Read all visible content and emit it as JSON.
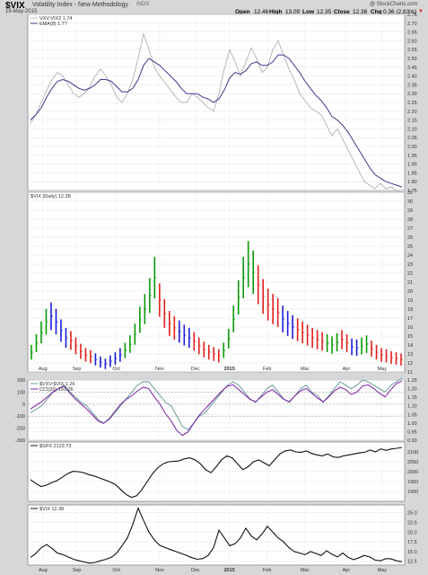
{
  "header": {
    "symbol": "$VIX",
    "name": "Volatility Index - New Methodology",
    "exchange": "INDX",
    "date": "15-May-2015",
    "copyright": "@ StockCharts.com",
    "open_label": "Open",
    "open_value": "12.46",
    "high_label": "High",
    "high_value": "13.09",
    "low_label": "Low",
    "low_value": "12.35",
    "close_label": "Close",
    "close_value": "12.38",
    "chg_label": "Chg",
    "chg_value": "0.36 (2.83%)",
    "chg_arrow": "▼"
  },
  "colors": {
    "up": "#0a9a0a",
    "down": "#e0201c",
    "blue": "#1c1cd8",
    "black": "#111111",
    "purple": "#7a1fa8",
    "gray": "#b8b8b8",
    "navy": "#3a3a8c",
    "teal": "#6a9a9a"
  },
  "chart_data": [
    {
      "type": "line",
      "panel": "ratio",
      "title": "$VXV:$VIX",
      "legend": [
        "VXV:VIX2 1.74",
        "EMA(8) 1.77"
      ],
      "series": [
        {
          "name": "VXV:VIX2 1.74",
          "values": [
            2.13,
            2.18,
            2.25,
            2.32,
            2.38,
            2.42,
            2.4,
            2.35,
            2.3,
            2.28,
            2.3,
            2.34,
            2.4,
            2.44,
            2.4,
            2.35,
            2.28,
            2.25,
            2.3,
            2.38,
            2.5,
            2.64,
            2.55,
            2.45,
            2.4,
            2.36,
            2.32,
            2.28,
            2.25,
            2.25,
            2.3,
            2.28,
            2.25,
            2.22,
            2.2,
            2.3,
            2.44,
            2.55,
            2.48,
            2.4,
            2.48,
            2.56,
            2.5,
            2.42,
            2.45,
            2.55,
            2.6,
            2.52,
            2.44,
            2.38,
            2.3,
            2.26,
            2.22,
            2.2,
            2.18,
            2.12,
            2.06,
            2.1,
            2.04,
            1.98,
            1.92,
            1.86,
            1.8,
            1.78,
            1.76,
            1.79,
            1.76,
            1.77,
            1.75,
            1.74
          ]
        },
        {
          "name": "EMA(8) 1.77",
          "values": [
            2.15,
            2.18,
            2.22,
            2.28,
            2.33,
            2.37,
            2.38,
            2.37,
            2.35,
            2.33,
            2.32,
            2.33,
            2.35,
            2.38,
            2.38,
            2.37,
            2.34,
            2.31,
            2.31,
            2.33,
            2.38,
            2.46,
            2.5,
            2.48,
            2.46,
            2.43,
            2.4,
            2.37,
            2.33,
            2.3,
            2.3,
            2.3,
            2.28,
            2.27,
            2.25,
            2.27,
            2.32,
            2.39,
            2.42,
            2.41,
            2.43,
            2.47,
            2.48,
            2.46,
            2.46,
            2.48,
            2.52,
            2.52,
            2.5,
            2.46,
            2.42,
            2.37,
            2.33,
            2.29,
            2.26,
            2.22,
            2.17,
            2.15,
            2.12,
            2.08,
            2.03,
            1.98,
            1.93,
            1.88,
            1.84,
            1.82,
            1.8,
            1.79,
            1.78,
            1.77
          ]
        }
      ],
      "ylim": [
        1.75,
        2.75
      ],
      "yticks": [
        "1.75",
        "1.80",
        "1.85",
        "1.90",
        "1.95",
        "2.00",
        "2.05",
        "2.10",
        "2.15",
        "2.20",
        "2.25",
        "2.30",
        "2.35",
        "2.40",
        "2.45",
        "2.50",
        "2.55",
        "2.60",
        "2.65",
        "2.70",
        "2.75"
      ]
    },
    {
      "type": "bar",
      "panel": "price",
      "title": "$VIX (Daily) 12.38",
      "legend": [
        "$VIX (Daily) 12.38"
      ],
      "style": "ohlc",
      "colors_sequence": [
        "g",
        "g",
        "g",
        "g",
        "b",
        "b",
        "b",
        "b",
        "r",
        "r",
        "r",
        "r",
        "r",
        "b",
        "b",
        "b",
        "b",
        "b",
        "b",
        "g",
        "g",
        "g",
        "g",
        "g",
        "g",
        "g",
        "r",
        "r",
        "r",
        "r",
        "b",
        "b",
        "b",
        "r",
        "r",
        "r",
        "r",
        "r",
        "r",
        "g",
        "g",
        "g",
        "g",
        "g",
        "g",
        "g",
        "r",
        "r",
        "r",
        "r",
        "r",
        "b",
        "b",
        "b",
        "r",
        "r",
        "r",
        "r",
        "r",
        "r",
        "g",
        "g",
        "g",
        "r",
        "r",
        "b",
        "b",
        "g",
        "g",
        "r",
        "r",
        "r",
        "r",
        "r",
        "r",
        "r"
      ],
      "values": [
        13.2,
        14.2,
        15.4,
        16.6,
        17.2,
        16.6,
        15.6,
        14.8,
        14.5,
        13.9,
        13.3,
        12.9,
        12.7,
        12.4,
        12.1,
        11.9,
        12.2,
        12.5,
        12.9,
        13.4,
        14.1,
        15.2,
        16.8,
        18.0,
        19.5,
        21.5,
        19.0,
        17.5,
        16.4,
        15.9,
        15.5,
        15.1,
        14.8,
        14.4,
        13.9,
        13.5,
        13.2,
        13.0,
        12.8,
        13.4,
        14.7,
        16.9,
        19.3,
        21.5,
        23.0,
        22.1,
        20.7,
        19.4,
        18.5,
        18.0,
        17.6,
        16.9,
        16.4,
        16.0,
        15.7,
        15.4,
        15.1,
        14.8,
        14.6,
        14.4,
        14.2,
        14.0,
        14.3,
        14.6,
        14.2,
        13.8,
        13.7,
        13.9,
        14.1,
        13.6,
        13.2,
        12.9,
        12.8,
        12.6,
        12.5,
        12.38
      ],
      "ylim": [
        11,
        31
      ],
      "yticks": [
        "11",
        "12",
        "13",
        "14",
        "15",
        "16",
        "17",
        "18",
        "19",
        "20",
        "21",
        "22",
        "23",
        "24",
        "25",
        "26",
        "27",
        "28",
        "29",
        "30",
        "31"
      ],
      "x_labels": [
        "Aug",
        "Sep",
        "Oct",
        "Nov",
        "Dec",
        "2015",
        "Feb",
        "Mar",
        "Apr",
        "May"
      ]
    },
    {
      "type": "line",
      "panel": "cci",
      "title": "$VXV:$VIX 1.26",
      "legend": [
        "$VXV:$VIX 1.26",
        "CCI(20) 191.26"
      ],
      "series": [
        {
          "name": "$VXV:$VIX 1.26",
          "values": [
            1.06,
            1.08,
            1.1,
            1.14,
            1.18,
            1.2,
            1.22,
            1.18,
            1.15,
            1.12,
            1.1,
            1.06,
            1.02,
            1.0,
            1.02,
            1.06,
            1.1,
            1.14,
            1.18,
            1.22,
            1.24,
            1.24,
            1.2,
            1.16,
            1.12,
            1.1,
            1.04,
            0.98,
            0.96,
            1.0,
            1.04,
            1.06,
            1.1,
            1.14,
            1.18,
            1.22,
            1.24,
            1.22,
            1.18,
            1.14,
            1.12,
            1.16,
            1.2,
            1.22,
            1.18,
            1.14,
            1.12,
            1.16,
            1.2,
            1.22,
            1.18,
            1.16,
            1.12,
            1.16,
            1.2,
            1.24,
            1.22,
            1.2,
            1.22,
            1.25,
            1.24,
            1.22,
            1.2,
            1.18,
            1.22,
            1.24,
            1.26
          ]
        },
        {
          "name": "CCI(20) 191.26",
          "values": [
            -40,
            -10,
            20,
            60,
            100,
            130,
            150,
            90,
            40,
            0,
            -40,
            -90,
            -140,
            -160,
            -120,
            -60,
            0,
            40,
            70,
            110,
            140,
            130,
            60,
            0,
            -80,
            -140,
            -220,
            -260,
            -230,
            -160,
            -90,
            -40,
            10,
            60,
            110,
            150,
            160,
            120,
            80,
            40,
            20,
            60,
            100,
            120,
            80,
            40,
            20,
            70,
            110,
            130,
            90,
            50,
            20,
            60,
            110,
            140,
            120,
            80,
            100,
            150,
            160,
            130,
            90,
            60,
            120,
            170,
            191.26
          ]
        }
      ],
      "ylim_left": [
        -300,
        200
      ],
      "yticks_left": [
        "-300",
        "-200",
        "-100",
        "0",
        "100",
        "200"
      ],
      "ylim_right": [
        0.9,
        1.25
      ],
      "yticks_right": [
        "0.90",
        "0.95",
        "1.00",
        "1.05",
        "1.10",
        "1.15",
        "1.20",
        "1.25"
      ]
    },
    {
      "type": "line",
      "panel": "spx",
      "title": "$SPX 2122.73",
      "legend": [
        "$SPX 2122.73"
      ],
      "series": [
        {
          "name": "$SPX 2122.73",
          "values": [
            1960,
            1940,
            1925,
            1932,
            1945,
            1955,
            1972,
            1990,
            2002,
            2000,
            1995,
            1985,
            1978,
            1968,
            1958,
            1948,
            1935,
            1910,
            1885,
            1870,
            1878,
            1910,
            1950,
            1990,
            2020,
            2040,
            2050,
            2052,
            2055,
            2065,
            2070,
            2060,
            2040,
            2010,
            1995,
            2025,
            2060,
            2080,
            2070,
            2040,
            2010,
            2025,
            2050,
            2060,
            2045,
            2030,
            2060,
            2090,
            2105,
            2110,
            2100,
            2098,
            2105,
            2092,
            2085,
            2080,
            2090,
            2075,
            2072,
            2080,
            2085,
            2090,
            2095,
            2098,
            2110,
            2100,
            2115,
            2108,
            2115,
            2118,
            2122.73
          ]
        }
      ],
      "ylim": [
        1850,
        2150
      ],
      "yticks": [
        "1900",
        "1950",
        "2000",
        "2050",
        "2100"
      ]
    },
    {
      "type": "line",
      "panel": "vix-close",
      "title": "$VIX 12.38",
      "legend": [
        "$VIX 12.38"
      ],
      "series": [
        {
          "name": "$VIX 12.38",
          "values": [
            13.5,
            14.5,
            16.0,
            16.8,
            15.8,
            14.6,
            14.2,
            13.6,
            13.0,
            12.6,
            12.3,
            12.0,
            12.2,
            12.6,
            13.0,
            13.5,
            14.6,
            16.5,
            18.5,
            22.0,
            26.2,
            23.0,
            20.0,
            18.0,
            16.6,
            16.0,
            15.5,
            15.0,
            14.5,
            14.0,
            13.4,
            13.0,
            13.2,
            14.0,
            16.0,
            20.5,
            18.5,
            16.5,
            17.0,
            18.5,
            21.0,
            19.0,
            18.0,
            19.5,
            21.5,
            20.0,
            18.5,
            17.5,
            16.0,
            15.0,
            14.6,
            14.2,
            15.0,
            14.5,
            14.0,
            15.2,
            14.3,
            13.6,
            14.6,
            13.5,
            12.9,
            13.4,
            14.0,
            13.6,
            12.8,
            12.6,
            13.2,
            13.1,
            12.6,
            12.38
          ]
        }
      ],
      "ylim": [
        11.5,
        27
      ],
      "yticks": [
        "12.5",
        "15.0",
        "17.5",
        "20.0",
        "22.5",
        "25.0"
      ],
      "x_labels": [
        "Aug",
        "Sep",
        "Oct",
        "Nov",
        "Dec",
        "2015",
        "Feb",
        "Mar",
        "Apr",
        "May"
      ]
    }
  ]
}
